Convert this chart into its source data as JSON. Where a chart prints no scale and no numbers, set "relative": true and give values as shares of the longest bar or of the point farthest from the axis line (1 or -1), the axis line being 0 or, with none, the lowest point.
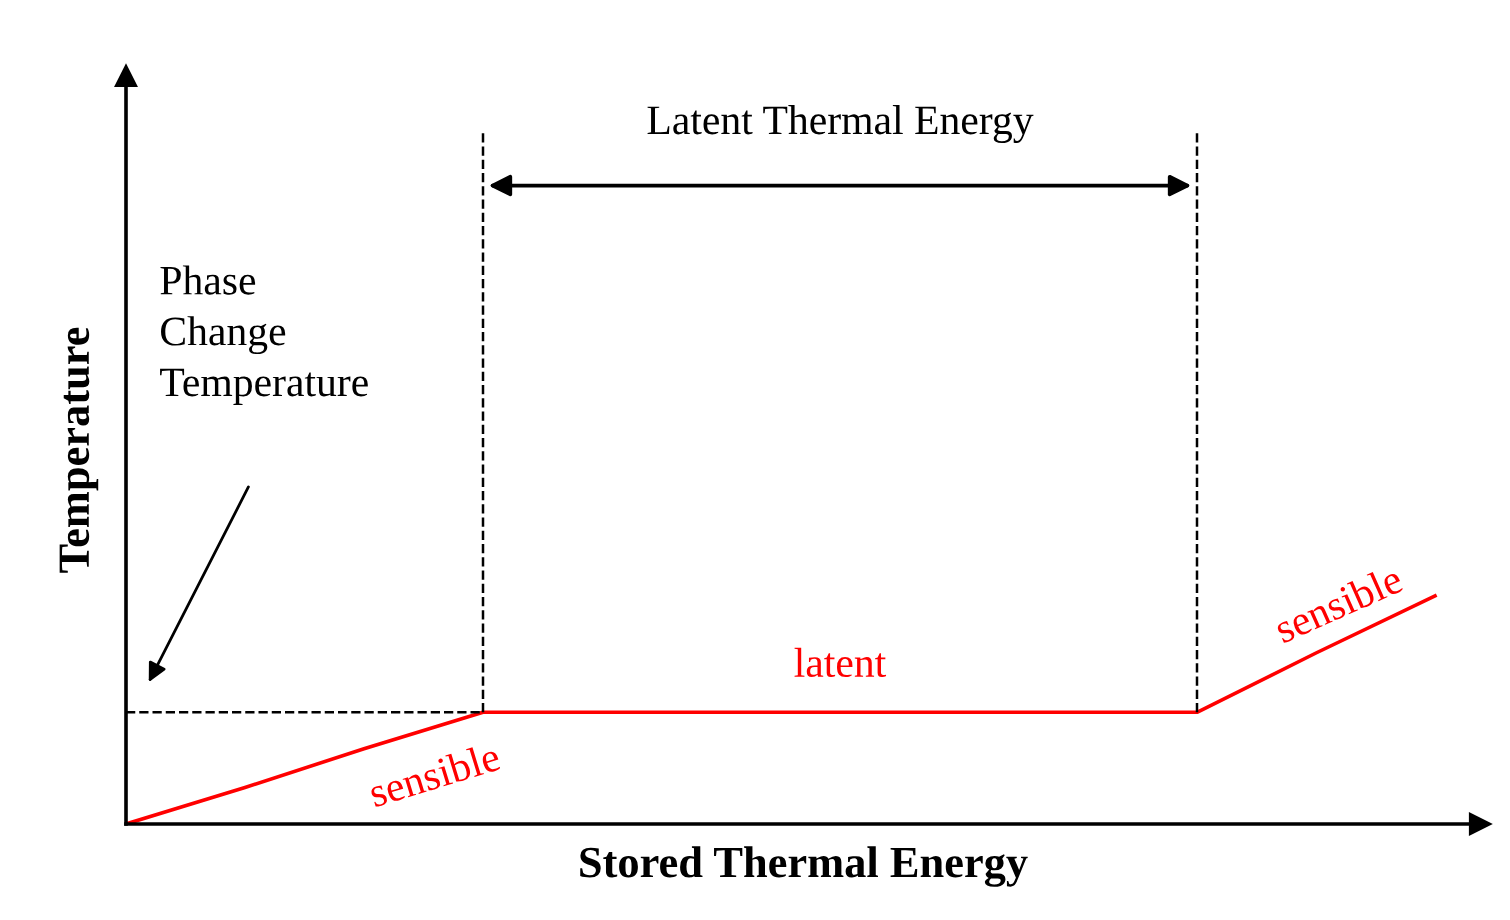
{
  "chart_data": {
    "type": "line",
    "relative": true,
    "xlabel": "Stored Thermal Energy",
    "ylabel": "Temperature",
    "categories": [
      null,
      null,
      null,
      null,
      null,
      null,
      null,
      null,
      null,
      null,
      null,
      null
    ],
    "series": [
      {
        "color": "#ff0000",
        "values": [
          0,
          0.16,
          0.33,
          0.49,
          0.49,
          0.49,
          0.49,
          0.49,
          0.49,
          0.49,
          0.75,
          1
        ]
      }
    ],
    "ref_lines": [
      {
        "axis": "y",
        "value": 0.49,
        "label": "Phase Change Temperature",
        "line_style": "dashed",
        "color": "#000000"
      }
    ],
    "annotations": [
      "Latent Thermal Energy",
      "sensible",
      "latent",
      "sensible"
    ],
    "marker": "none",
    "line_style": "solid",
    "legend": false
  }
}
